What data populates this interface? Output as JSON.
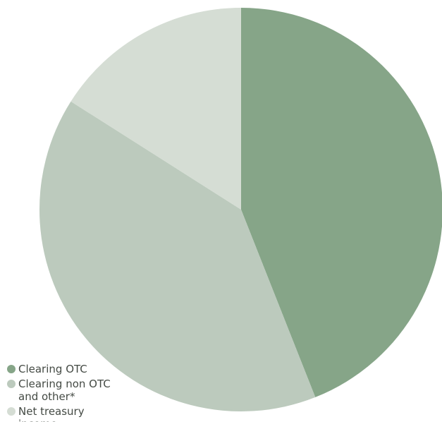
{
  "chart_data": {
    "type": "pie",
    "title": "",
    "slices": [
      {
        "label": "Clearing OTC",
        "value": 44,
        "color": "#86a588"
      },
      {
        "label": "Clearing non OTC and other*",
        "value": 40,
        "color": "#bccabd"
      },
      {
        "label": "Net treasury income",
        "value": 16,
        "color": "#d5ddd4"
      }
    ],
    "start_angle": "12 o'clock",
    "direction": "clockwise",
    "legend_position": "bottom-left"
  }
}
